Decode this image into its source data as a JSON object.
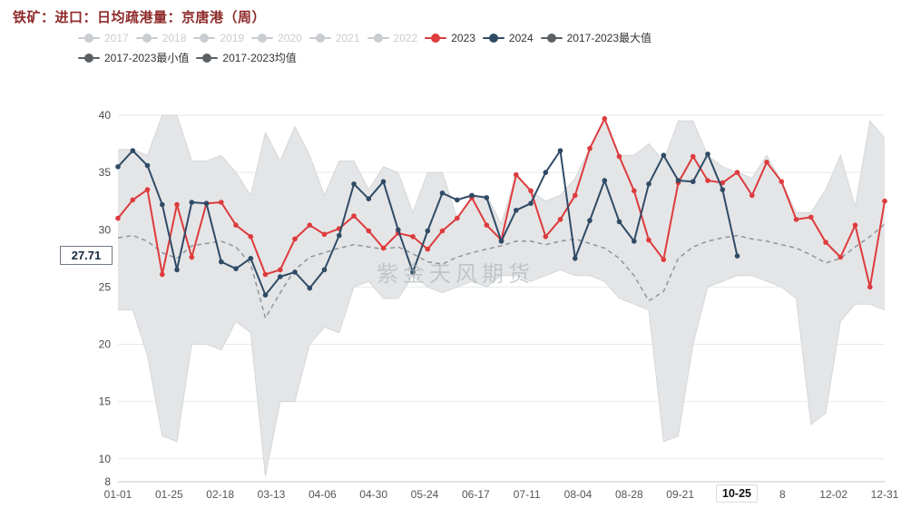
{
  "title": "铁矿：进口：日均疏港量：京唐港（周）",
  "watermark": "紫金天风期货",
  "colors": {
    "title": "#8e2a2a",
    "series_2023": "#dd3b3d",
    "series_2024": "#2f4b66",
    "band_fill": "#e4e5e6",
    "band_edge": "#d4d7da",
    "mean_line": "#90959b",
    "inactive_legend": "#c9ccd1",
    "stat_legend": "#5b6065"
  },
  "legend": {
    "items": [
      {
        "label": "2017",
        "color": "#c9ccd1",
        "active": false
      },
      {
        "label": "2018",
        "color": "#c9ccd1",
        "active": false
      },
      {
        "label": "2019",
        "color": "#c9ccd1",
        "active": false
      },
      {
        "label": "2020",
        "color": "#c9ccd1",
        "active": false
      },
      {
        "label": "2021",
        "color": "#c9ccd1",
        "active": false
      },
      {
        "label": "2022",
        "color": "#c9ccd1",
        "active": false
      },
      {
        "label": "2023",
        "color": "#dd3b3d",
        "active": true
      },
      {
        "label": "2024",
        "color": "#2f4b66",
        "active": true
      },
      {
        "label": "2017-2023最大值",
        "color": "#5b6065",
        "active": true
      },
      {
        "label": "2017-2023最小值",
        "color": "#5b6065",
        "active": true
      },
      {
        "label": "2017-2023均值",
        "color": "#5b6065",
        "active": true
      }
    ]
  },
  "y_axis": {
    "pointer_value": "27.71"
  },
  "x_axis": {
    "slots": [
      {
        "text": "01-01",
        "style": "normal"
      },
      {
        "text": "01-25",
        "style": "normal"
      },
      {
        "text": "02-18",
        "style": "normal"
      },
      {
        "text": "03-13",
        "style": "normal"
      },
      {
        "text": "04-06",
        "style": "normal"
      },
      {
        "text": "04-30",
        "style": "normal"
      },
      {
        "text": "05-24",
        "style": "normal"
      },
      {
        "text": "06-17",
        "style": "normal"
      },
      {
        "text": "07-11",
        "style": "normal"
      },
      {
        "text": "08-04",
        "style": "normal"
      },
      {
        "text": "08-28",
        "style": "normal"
      },
      {
        "text": "09-21",
        "style": "normal"
      },
      {
        "text": "10-25",
        "style": "pointer"
      },
      {
        "text": "8",
        "style": "normal"
      },
      {
        "text": "12-02",
        "style": "normal"
      },
      {
        "text": "12-31",
        "style": "normal"
      }
    ]
  },
  "chart_data": {
    "type": "line",
    "title": "铁矿：进口：日均疏港量：京唐港（周）",
    "ylim": [
      8,
      40
    ],
    "y_ticks": [
      8,
      10,
      15,
      20,
      25,
      30,
      35,
      40
    ],
    "x_tick_labels": [
      "01-01",
      "01-25",
      "02-18",
      "03-13",
      "04-06",
      "04-30",
      "05-24",
      "06-17",
      "07-11",
      "08-04",
      "08-28",
      "09-21",
      "10-25",
      "8",
      "12-02",
      "12-31"
    ],
    "weeks_per_year": 53,
    "grid": true,
    "legend_position": "top",
    "pointer": {
      "x_label": "10-25",
      "y_value": 27.71
    },
    "series": [
      {
        "name": "2023",
        "color": "#dd3b3d",
        "style": "solid-markers",
        "values": [
          31.0,
          32.6,
          33.5,
          26.1,
          32.2,
          27.6,
          32.3,
          32.4,
          30.4,
          29.4,
          26.1,
          26.5,
          29.2,
          30.4,
          29.6,
          30.1,
          31.2,
          29.9,
          28.4,
          29.7,
          29.4,
          28.3,
          29.9,
          31.0,
          32.8,
          30.4,
          29.1,
          34.8,
          33.4,
          29.4,
          30.9,
          33.0,
          37.1,
          39.7,
          36.4,
          33.4,
          29.1,
          27.4,
          34.1,
          36.4,
          34.3,
          34.1,
          35.0,
          33.0,
          35.9,
          34.2,
          30.9,
          31.1,
          28.9,
          27.6,
          30.4,
          25.0,
          32.5
        ]
      },
      {
        "name": "2024",
        "color": "#2f4b66",
        "style": "solid-markers",
        "values": [
          35.5,
          36.9,
          35.6,
          32.2,
          26.5,
          32.4,
          32.3,
          27.2,
          26.6,
          27.5,
          24.3,
          25.9,
          26.3,
          24.9,
          26.5,
          29.5,
          34.0,
          32.7,
          34.2,
          30.0,
          26.3,
          29.9,
          33.2,
          32.6,
          33.0,
          32.8,
          29.0,
          31.7,
          32.3,
          35.0,
          36.9,
          27.5,
          30.8,
          34.3,
          30.7,
          29.0,
          34.0,
          36.5,
          34.3,
          34.2,
          36.6,
          33.5,
          27.71
        ]
      },
      {
        "name": "2017-2023均值",
        "color": "#90959b",
        "style": "dashed",
        "values": [
          29.3,
          29.5,
          29.0,
          28.0,
          27.5,
          28.6,
          28.8,
          29.0,
          28.5,
          27.0,
          22.3,
          24.5,
          26.5,
          27.6,
          28.0,
          28.4,
          28.7,
          28.5,
          28.3,
          28.5,
          27.9,
          27.2,
          27.0,
          27.6,
          28.0,
          28.3,
          28.6,
          29.0,
          29.0,
          28.7,
          29.0,
          29.2,
          28.8,
          28.4,
          27.5,
          26.0,
          23.8,
          24.6,
          27.5,
          28.5,
          29.0,
          29.3,
          29.5,
          29.2,
          29.0,
          28.7,
          28.4,
          27.8,
          27.1,
          27.5,
          28.5,
          29.4,
          30.5
        ]
      },
      {
        "name": "2017-2023最大值",
        "color": "#d4d7da",
        "style": "band-top",
        "values": [
          37.0,
          37.0,
          36.5,
          40.0,
          40.0,
          36.0,
          36.0,
          36.5,
          35.0,
          33.0,
          38.5,
          36.0,
          39.0,
          36.5,
          33.0,
          36.0,
          36.0,
          33.5,
          35.5,
          35.0,
          31.5,
          35.0,
          35.0,
          31.0,
          32.8,
          33.0,
          30.5,
          34.8,
          33.4,
          32.5,
          33.0,
          34.5,
          37.1,
          39.7,
          36.5,
          36.5,
          37.5,
          36.0,
          39.5,
          39.5,
          36.5,
          35.5,
          35.0,
          34.5,
          36.5,
          34.2,
          31.5,
          31.5,
          33.5,
          36.5,
          32.0,
          39.5,
          38.0
        ]
      },
      {
        "name": "2017-2023最小值",
        "color": "#d4d7da",
        "style": "band-bottom",
        "values": [
          23.0,
          23.0,
          19.0,
          12.0,
          11.5,
          20.0,
          20.0,
          19.5,
          22.0,
          21.0,
          8.5,
          15.0,
          15.0,
          20.0,
          21.5,
          21.0,
          25.0,
          25.5,
          24.0,
          24.0,
          26.0,
          25.0,
          24.5,
          25.0,
          25.5,
          25.0,
          26.0,
          26.0,
          25.5,
          26.0,
          26.5,
          26.0,
          26.0,
          25.5,
          24.0,
          23.5,
          23.0,
          11.5,
          12.0,
          20.0,
          25.0,
          25.5,
          26.0,
          26.0,
          25.5,
          25.0,
          24.0,
          13.0,
          14.0,
          22.0,
          23.5,
          23.5,
          23.0
        ]
      }
    ]
  }
}
